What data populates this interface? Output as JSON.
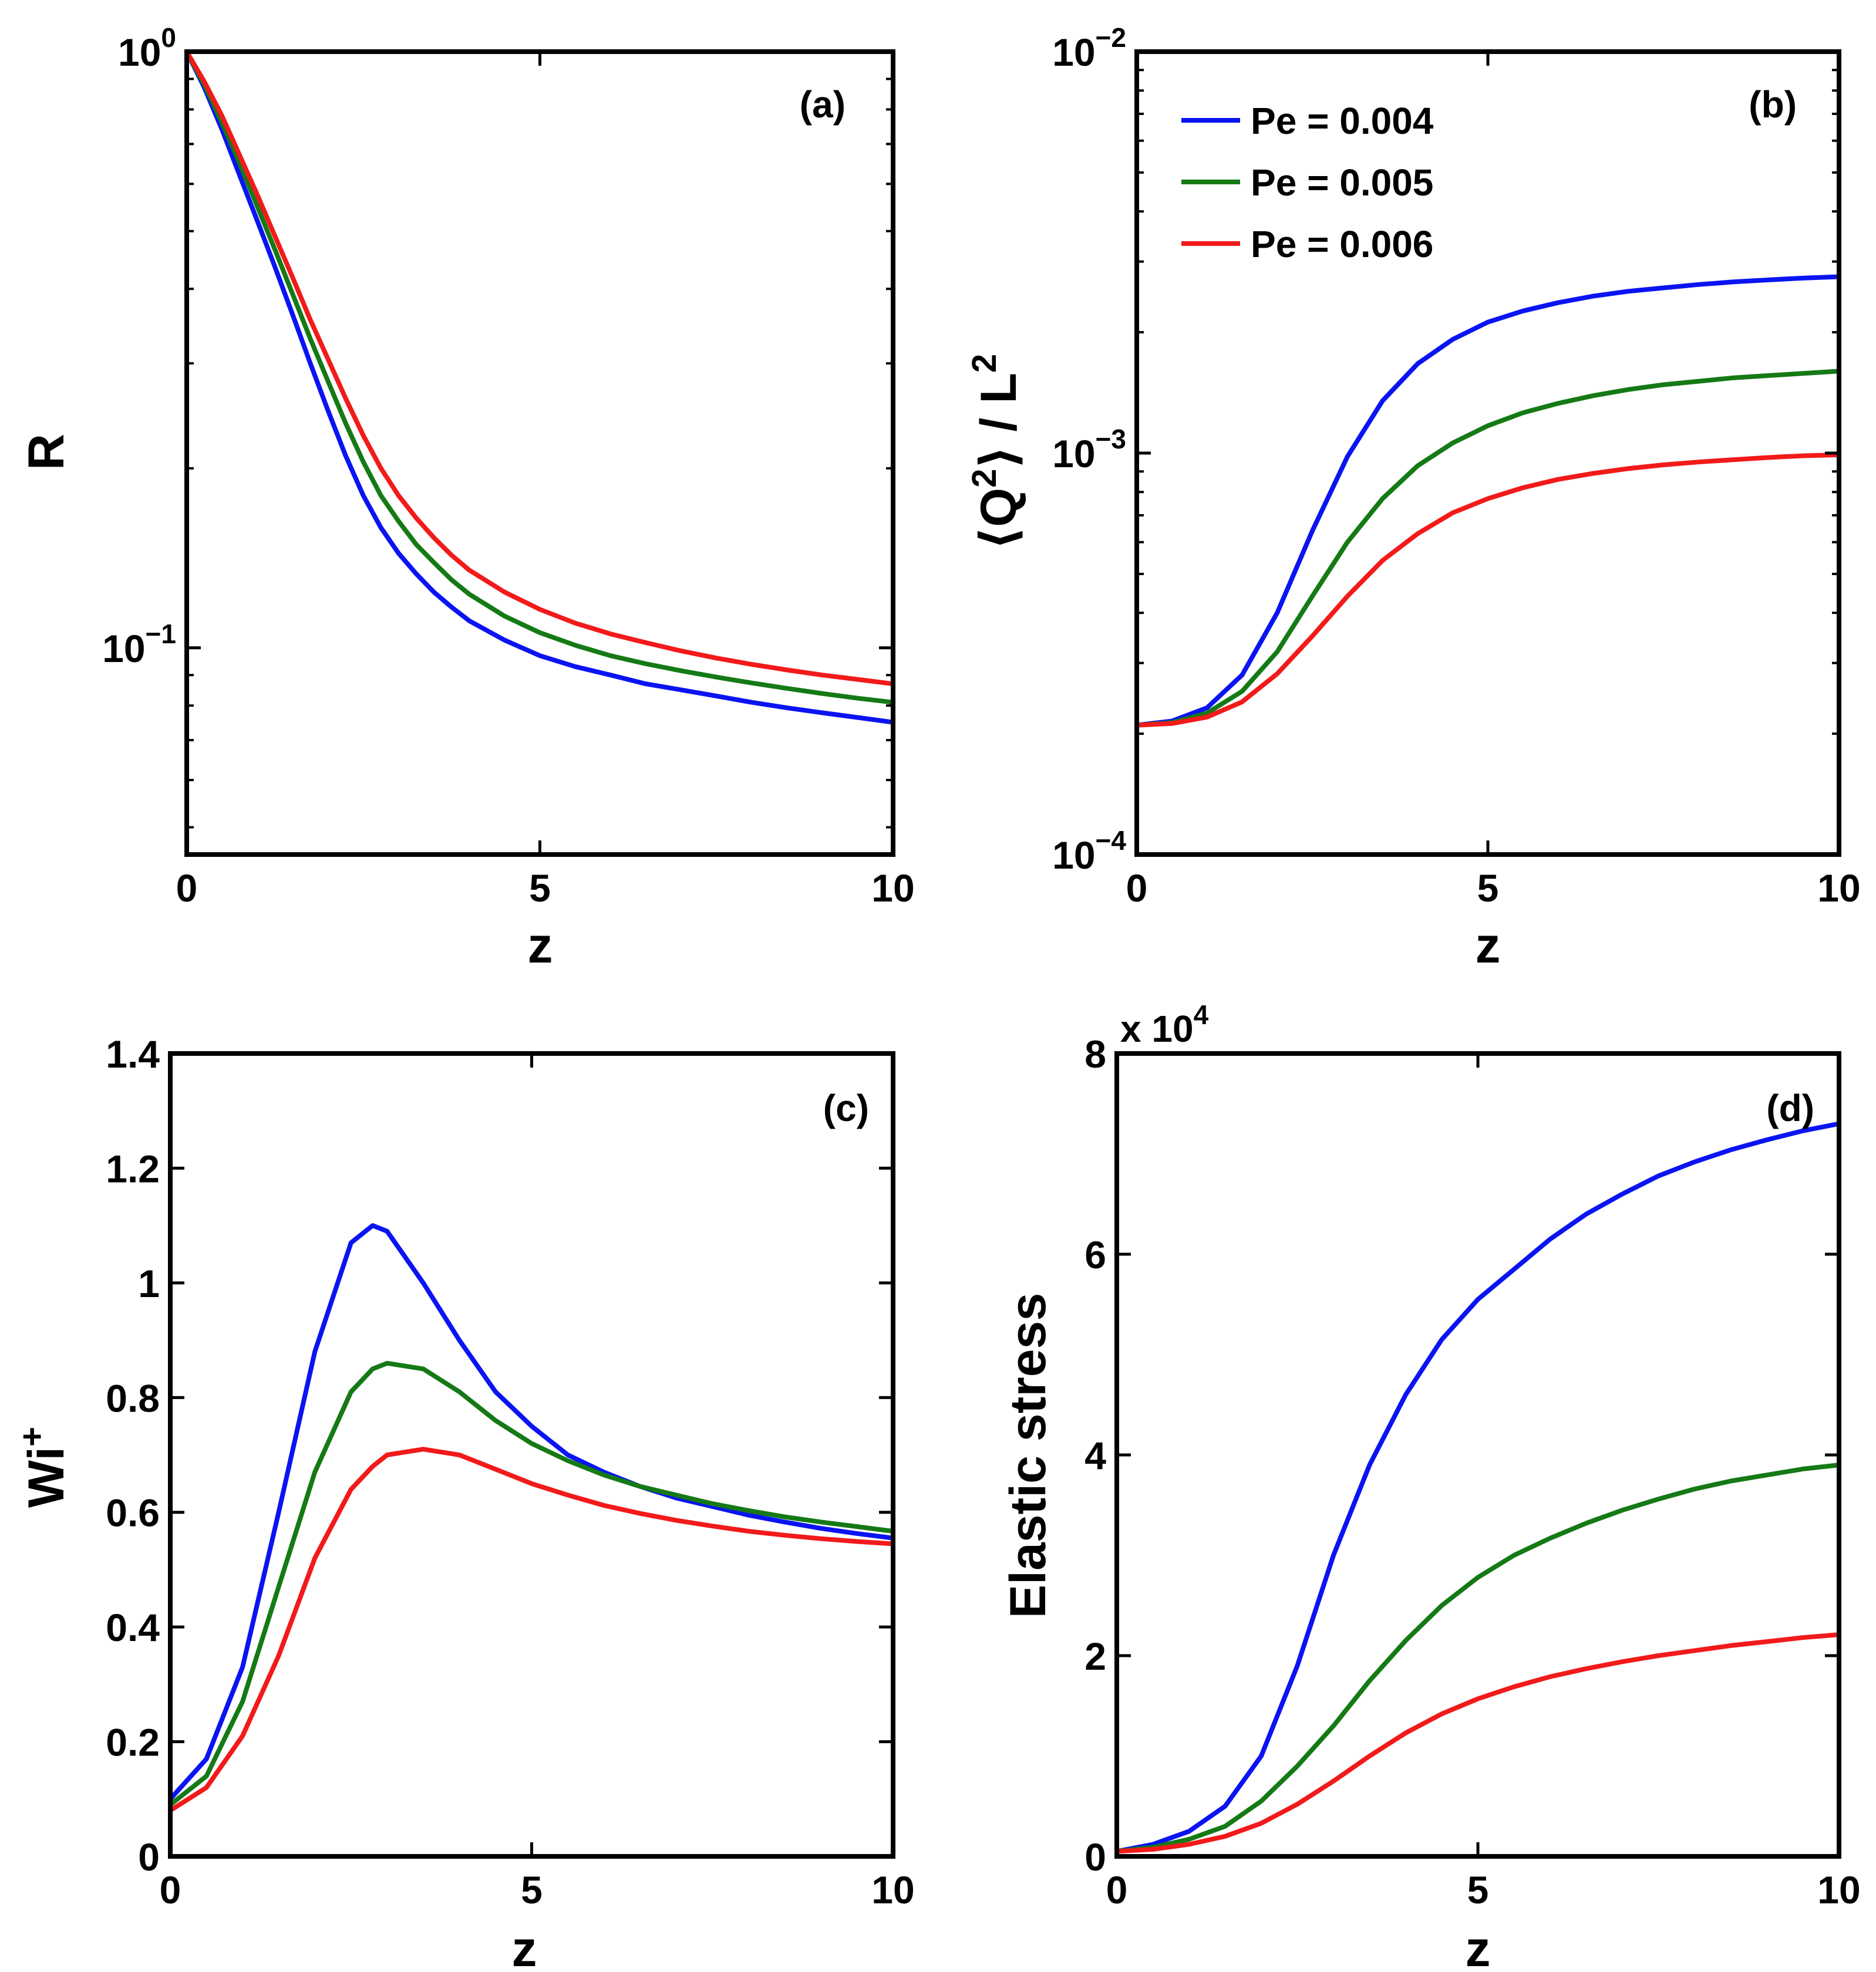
{
  "colors": {
    "series": [
      "#0a14f2",
      "#157a15",
      "#f21a1a"
    ]
  },
  "legend": {
    "entries": [
      "Pe = 0.004",
      "Pe = 0.005",
      "Pe = 0.006"
    ],
    "placement": "top-left of panel (b)"
  },
  "chart_data": [
    {
      "panel": "(a)",
      "type": "line",
      "xlabel": "z",
      "ylabel": "R",
      "yscale": "log",
      "xlim": [
        0,
        10
      ],
      "ylim": [
        0.045,
        1
      ],
      "xticks": [
        0,
        5,
        10
      ],
      "xtick_labels": [
        "0",
        "5",
        "10"
      ],
      "yticks": [
        0.1,
        1
      ],
      "ytick_labels": [
        {
          "base": "10",
          "exp": "−1"
        },
        {
          "base": "10",
          "exp": "0"
        }
      ],
      "x": [
        0,
        0.25,
        0.5,
        0.75,
        1,
        1.25,
        1.5,
        1.75,
        2,
        2.25,
        2.5,
        2.75,
        3,
        3.25,
        3.5,
        3.75,
        4,
        4.5,
        5,
        5.5,
        6,
        6.5,
        7,
        7.5,
        8,
        8.5,
        9,
        9.5,
        10
      ],
      "series": [
        {
          "name": "Pe = 0.004",
          "values": [
            1.0,
            0.87,
            0.74,
            0.62,
            0.52,
            0.435,
            0.362,
            0.3,
            0.25,
            0.21,
            0.18,
            0.159,
            0.144,
            0.133,
            0.124,
            0.117,
            0.111,
            0.103,
            0.097,
            0.093,
            0.09,
            0.087,
            0.085,
            0.083,
            0.081,
            0.0793,
            0.0778,
            0.0764,
            0.075
          ]
        },
        {
          "name": "Pe = 0.005",
          "values": [
            1.0,
            0.88,
            0.76,
            0.65,
            0.55,
            0.465,
            0.392,
            0.33,
            0.28,
            0.238,
            0.205,
            0.18,
            0.163,
            0.149,
            0.139,
            0.13,
            0.123,
            0.113,
            0.106,
            0.101,
            0.097,
            0.094,
            0.0915,
            0.0893,
            0.0873,
            0.0855,
            0.0838,
            0.0823,
            0.081
          ]
        },
        {
          "name": "Pe = 0.006",
          "values": [
            1.0,
            0.89,
            0.78,
            0.67,
            0.575,
            0.49,
            0.418,
            0.355,
            0.305,
            0.262,
            0.227,
            0.2,
            0.18,
            0.165,
            0.153,
            0.143,
            0.135,
            0.124,
            0.116,
            0.11,
            0.1055,
            0.102,
            0.0988,
            0.0961,
            0.0938,
            0.0918,
            0.09,
            0.0885,
            0.087
          ]
        }
      ]
    },
    {
      "panel": "(b)",
      "type": "line",
      "xlabel": "z",
      "ylabel_parts": {
        "lbracket": "⟨",
        "q": "Q",
        "sup": "2",
        "rbracket": "⟩",
        "slash": " / ",
        "l": "L",
        "lsup": "2"
      },
      "yscale": "log",
      "xlim": [
        0,
        10
      ],
      "ylim": [
        0.0001,
        0.01
      ],
      "xticks": [
        0,
        5,
        10
      ],
      "xtick_labels": [
        "0",
        "5",
        "10"
      ],
      "yticks": [
        0.0001,
        0.001,
        0.01
      ],
      "ytick_labels": [
        {
          "base": "10",
          "exp": "−4"
        },
        {
          "base": "10",
          "exp": "−3"
        },
        {
          "base": "10",
          "exp": "−2"
        }
      ],
      "x": [
        0,
        0.5,
        1,
        1.5,
        2,
        2.5,
        3,
        3.5,
        4,
        4.5,
        5,
        5.5,
        6,
        6.5,
        7,
        7.5,
        8,
        8.5,
        9,
        9.5,
        10
      ],
      "series": [
        {
          "name": "Pe = 0.004",
          "values": [
            0.00021,
            0.000215,
            0.000232,
            0.00028,
            0.0004,
            0.00064,
            0.00098,
            0.00135,
            0.00167,
            0.00192,
            0.00212,
            0.00226,
            0.00237,
            0.00246,
            0.00253,
            0.00258,
            0.00263,
            0.00267,
            0.0027,
            0.00273,
            0.00275
          ]
        },
        {
          "name": "Pe = 0.005",
          "values": [
            0.00021,
            0.000213,
            0.000225,
            0.000255,
            0.00032,
            0.00044,
            0.0006,
            0.00077,
            0.00093,
            0.00106,
            0.00117,
            0.00126,
            0.00133,
            0.00139,
            0.00144,
            0.00148,
            0.00151,
            0.00154,
            0.00156,
            0.00158,
            0.0016
          ]
        },
        {
          "name": "Pe = 0.006",
          "values": [
            0.00021,
            0.000212,
            0.00022,
            0.00024,
            0.000282,
            0.00035,
            0.00044,
            0.00054,
            0.00063,
            0.00071,
            0.00077,
            0.00082,
            0.00086,
            0.00089,
            0.000915,
            0.000935,
            0.00095,
            0.000963,
            0.000975,
            0.000985,
            0.00099
          ]
        }
      ]
    },
    {
      "panel": "(c)",
      "type": "line",
      "xlabel": "z",
      "ylabel": "Wi",
      "ylabel_sup": "+",
      "yscale": "linear",
      "xlim": [
        0,
        10
      ],
      "ylim": [
        0,
        1.4
      ],
      "xticks": [
        0,
        5,
        10
      ],
      "xtick_labels": [
        "0",
        "5",
        "10"
      ],
      "yticks": [
        0,
        0.2,
        0.4,
        0.6,
        0.8,
        1,
        1.2,
        1.4
      ],
      "ytick_labels": [
        "0",
        "0.2",
        "0.4",
        "0.6",
        "0.8",
        "1",
        "1.2",
        "1.4"
      ],
      "x": [
        0,
        0.5,
        1,
        1.5,
        2,
        2.5,
        2.8,
        3,
        3.5,
        4,
        4.5,
        5,
        5.5,
        6,
        6.5,
        7,
        7.5,
        8,
        8.5,
        9,
        9.5,
        10
      ],
      "series": [
        {
          "name": "Pe = 0.004",
          "values": [
            0.1,
            0.17,
            0.33,
            0.6,
            0.88,
            1.07,
            1.1,
            1.09,
            1.0,
            0.9,
            0.81,
            0.75,
            0.7,
            0.67,
            0.645,
            0.625,
            0.61,
            0.595,
            0.583,
            0.572,
            0.563,
            0.555
          ]
        },
        {
          "name": "Pe = 0.005",
          "values": [
            0.09,
            0.14,
            0.27,
            0.47,
            0.67,
            0.81,
            0.85,
            0.86,
            0.85,
            0.81,
            0.76,
            0.72,
            0.69,
            0.665,
            0.645,
            0.63,
            0.615,
            0.603,
            0.592,
            0.583,
            0.575,
            0.567
          ]
        },
        {
          "name": "Pe = 0.006",
          "values": [
            0.08,
            0.12,
            0.21,
            0.35,
            0.52,
            0.64,
            0.68,
            0.7,
            0.71,
            0.7,
            0.675,
            0.65,
            0.63,
            0.612,
            0.598,
            0.586,
            0.576,
            0.567,
            0.56,
            0.554,
            0.549,
            0.545
          ]
        }
      ]
    },
    {
      "panel": "(d)",
      "type": "line",
      "xlabel": "z",
      "ylabel": "Elastic stress",
      "yscale": "linear",
      "multiplier": {
        "prefix": "x 10",
        "exp": "4"
      },
      "xlim": [
        0,
        10
      ],
      "ylim": [
        0,
        80000
      ],
      "xticks": [
        0,
        5,
        10
      ],
      "xtick_labels": [
        "0",
        "5",
        "10"
      ],
      "yticks": [
        0,
        20000,
        40000,
        60000,
        80000
      ],
      "ytick_labels": [
        "0",
        "2",
        "4",
        "6",
        "8"
      ],
      "x": [
        0,
        0.5,
        1,
        1.5,
        2,
        2.5,
        3,
        3.5,
        4,
        4.5,
        5,
        5.5,
        6,
        6.5,
        7,
        7.5,
        8,
        8.5,
        9,
        9.5,
        10
      ],
      "series": [
        {
          "name": "Pe = 0.004",
          "values": [
            500,
            1200,
            2500,
            5000,
            10000,
            19000,
            30000,
            39000,
            46000,
            51500,
            55500,
            58500,
            61500,
            64000,
            66000,
            67800,
            69200,
            70400,
            71400,
            72300,
            73000
          ]
        },
        {
          "name": "Pe = 0.005",
          "values": [
            500,
            900,
            1700,
            3000,
            5500,
            9000,
            13000,
            17500,
            21500,
            25000,
            27800,
            30000,
            31700,
            33200,
            34500,
            35600,
            36600,
            37400,
            38000,
            38600,
            39000
          ]
        },
        {
          "name": "Pe = 0.006",
          "values": [
            500,
            700,
            1200,
            2000,
            3300,
            5200,
            7500,
            10000,
            12300,
            14200,
            15700,
            16900,
            17900,
            18700,
            19400,
            20000,
            20500,
            21000,
            21400,
            21800,
            22100
          ]
        }
      ]
    }
  ]
}
